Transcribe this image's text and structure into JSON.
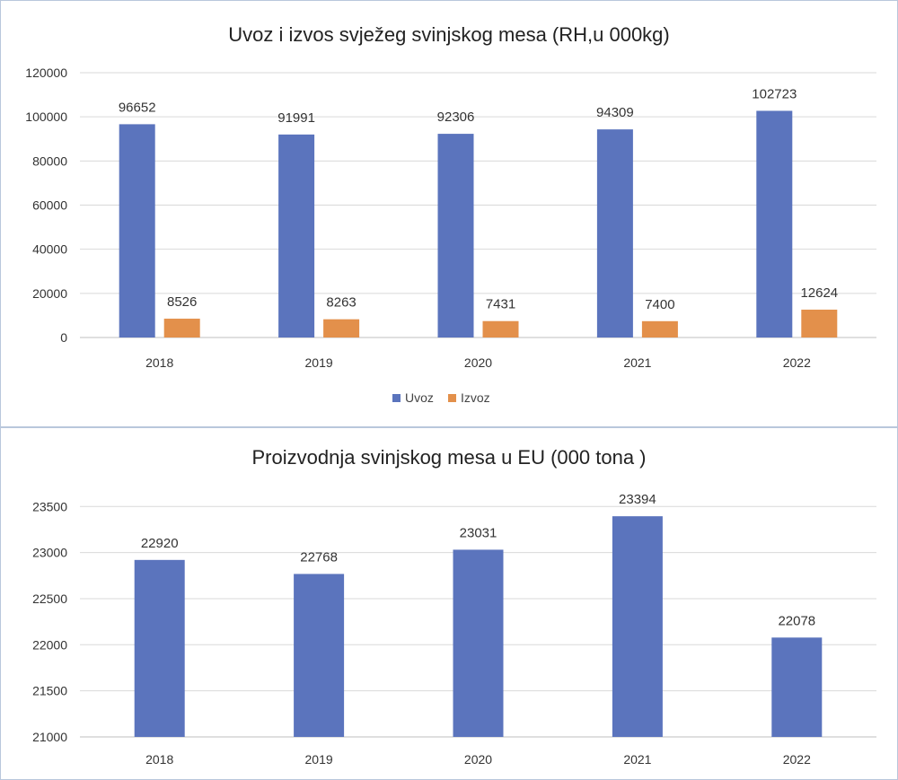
{
  "chart_data": [
    {
      "type": "bar",
      "title": "Uvoz i izvos svježeg svinjskog mesa (RH,u 000kg)",
      "categories": [
        "2018",
        "2019",
        "2020",
        "2021",
        "2022"
      ],
      "series": [
        {
          "name": "Uvoz",
          "color": "#5b74bd",
          "values": [
            96652,
            91991,
            92306,
            94309,
            102723
          ]
        },
        {
          "name": "Izvoz",
          "color": "#e3904b",
          "values": [
            8526,
            8263,
            7431,
            7400,
            12624
          ]
        }
      ],
      "y_ticks": [
        "0",
        "20000",
        "40000",
        "60000",
        "80000",
        "100000",
        "120000"
      ],
      "ylim": [
        0,
        120000
      ],
      "grid": true,
      "legend": "bottom"
    },
    {
      "type": "bar",
      "title": "Proizvodnja svinjskog mesa u EU (000 tona )",
      "categories": [
        "2018",
        "2019",
        "2020",
        "2021",
        "2022"
      ],
      "series": [
        {
          "color": "#5b74bd",
          "values": [
            22920,
            22768,
            23031,
            23394,
            22078
          ]
        }
      ],
      "y_ticks": [
        "21000",
        "21500",
        "22000",
        "22500",
        "23000",
        "23500"
      ],
      "ylim": [
        21000,
        23600
      ],
      "grid": true,
      "legend": "none"
    }
  ]
}
